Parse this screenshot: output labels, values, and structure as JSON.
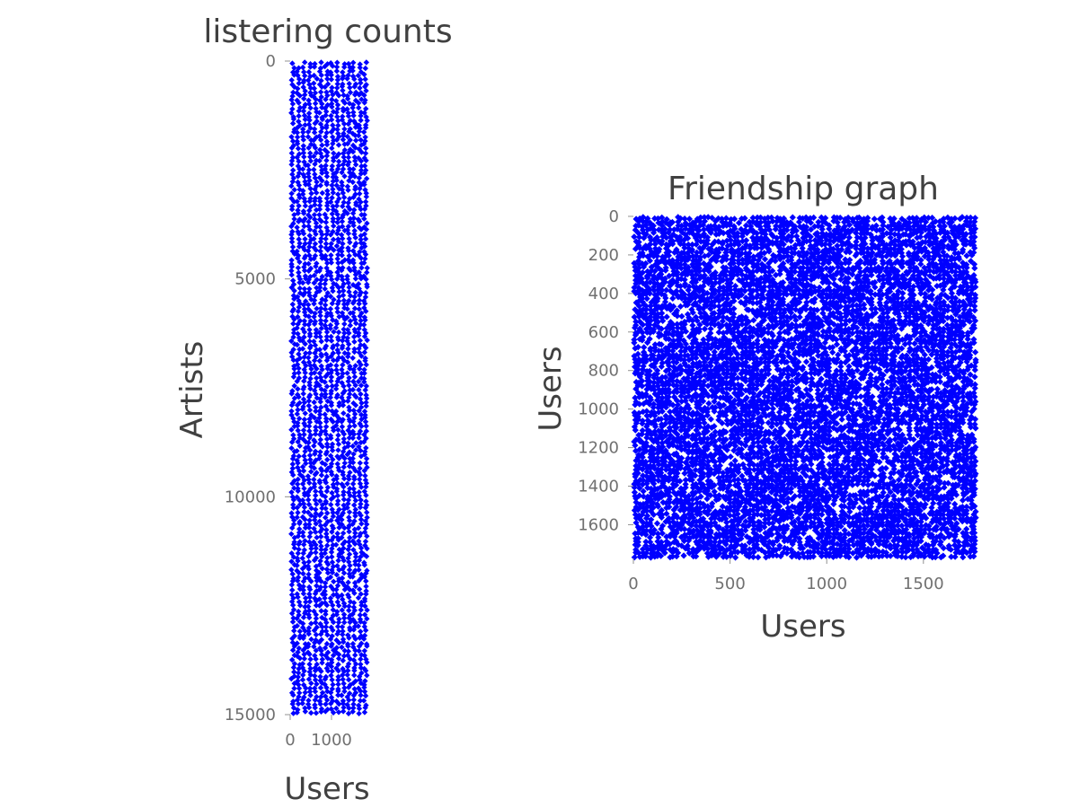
{
  "chart_data": [
    {
      "type": "scatter",
      "subtype": "spy",
      "title": "listering counts",
      "xlabel": "Users",
      "ylabel": "Artists",
      "xlim": [
        0,
        1892
      ],
      "ylim": [
        15000,
        0
      ],
      "y_inverted": true,
      "xticks": [
        0,
        1000
      ],
      "yticks": [
        0,
        5000,
        10000,
        15000
      ],
      "marker_color": "#0000ff",
      "density": 0.99
    },
    {
      "type": "scatter",
      "subtype": "spy",
      "title": "Friendship graph",
      "xlabel": "Users",
      "ylabel": "Users",
      "xlim": [
        0,
        1775
      ],
      "ylim": [
        1775,
        0
      ],
      "y_inverted": true,
      "xticks": [
        0,
        500,
        1000,
        1500
      ],
      "yticks": [
        0,
        200,
        400,
        600,
        800,
        1000,
        1200,
        1400,
        1600
      ],
      "marker_color": "#0000ff",
      "density": 0.8
    }
  ]
}
